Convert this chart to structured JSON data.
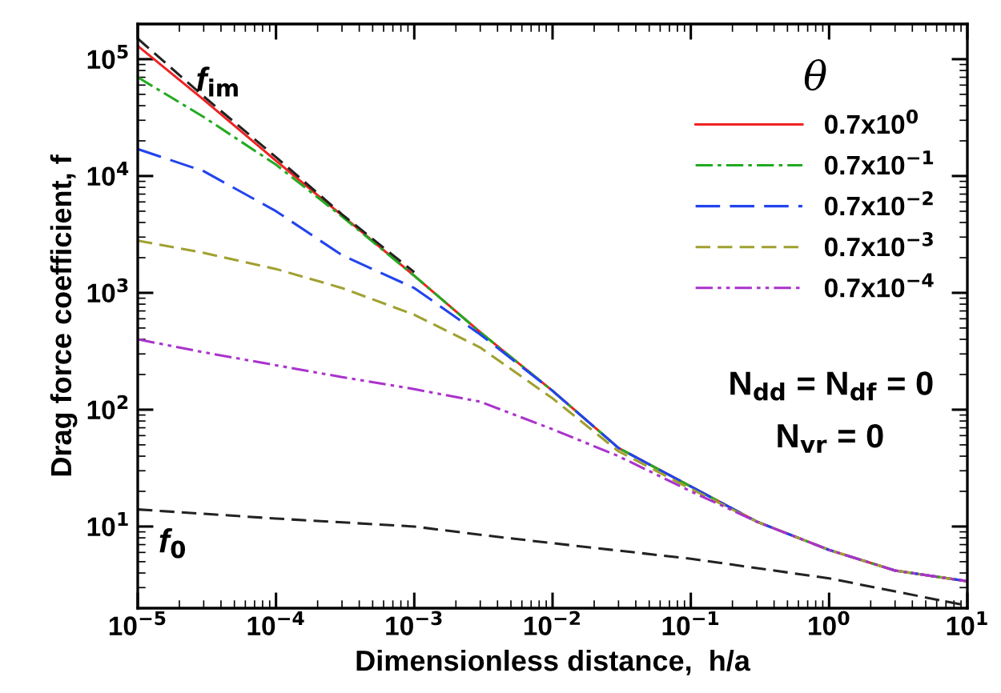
{
  "chart_data": {
    "type": "line",
    "xlabel": "Dimensionless distance,  h/a",
    "ylabel": "Drag force coefficient, f",
    "legend_title": "θ",
    "log": "xy",
    "xlim": [
      1e-05,
      10
    ],
    "ylim": [
      2,
      200000
    ],
    "xticks": [
      {
        "value": 1e-05,
        "label": "10$^{−5}$"
      },
      {
        "value": 0.0001,
        "label": "10$^{−4}$"
      },
      {
        "value": 0.001,
        "label": "10$^{−3}$"
      },
      {
        "value": 0.01,
        "label": "10$^{−2}$"
      },
      {
        "value": 0.1,
        "label": "10$^{−1}$"
      },
      {
        "value": 1,
        "label": "10$^{0}$"
      },
      {
        "value": 10,
        "label": "10$^{1}$"
      }
    ],
    "yticks": [
      {
        "value": 10,
        "label": "10$^{1}$"
      },
      {
        "value": 100,
        "label": "10$^{2}$"
      },
      {
        "value": 1000,
        "label": "10$^{3}$"
      },
      {
        "value": 10000,
        "label": "10$^{4}$"
      },
      {
        "value": 100000,
        "label": "10$^{5}$"
      }
    ],
    "grid": false,
    "legend": "top right",
    "series": [
      {
        "name": "0.7x10$^{0}$",
        "color": "#ee2222",
        "line_style": "solid",
        "x": [
          1e-05,
          3e-05,
          0.0001,
          0.0003,
          0.001,
          0.003,
          0.01,
          0.03,
          0.1,
          0.3,
          1,
          3,
          10
        ],
        "values": [
          130000,
          45000,
          13500,
          4600,
          1400,
          460,
          145,
          47,
          22,
          11,
          6.3,
          4.2,
          3.4
        ]
      },
      {
        "name": "0.7x10$^{−1}$",
        "color": "#22aa22",
        "line_style": "dashdot",
        "x": [
          1e-05,
          3e-05,
          0.0001,
          0.0003,
          0.001,
          0.003,
          0.01,
          0.03,
          0.1,
          0.3,
          1,
          3,
          10
        ],
        "values": [
          70000,
          32000,
          12500,
          4500,
          1400,
          460,
          145,
          47,
          22,
          11,
          6.3,
          4.2,
          3.4
        ]
      },
      {
        "name": "0.7x10$^{−2}$",
        "color": "#2244ee",
        "line_style": "longdash",
        "x": [
          1e-05,
          3e-05,
          0.0001,
          0.0003,
          0.001,
          0.003,
          0.01,
          0.03,
          0.1,
          0.3,
          1,
          3,
          10
        ],
        "values": [
          17000,
          11000,
          5000,
          2100,
          1100,
          440,
          145,
          47,
          22,
          11,
          6.3,
          4.2,
          3.4
        ]
      },
      {
        "name": "0.7x10$^{−3}$",
        "color": "#a0a030",
        "line_style": "dashed",
        "x": [
          1e-05,
          3e-05,
          0.0001,
          0.0003,
          0.001,
          0.003,
          0.01,
          0.03,
          0.1,
          0.3,
          1,
          3,
          10
        ],
        "values": [
          2800,
          2200,
          1600,
          1100,
          650,
          340,
          125,
          44,
          21,
          11,
          6.3,
          4.2,
          3.4
        ]
      },
      {
        "name": "0.7x10$^{−4}$",
        "color": "#aa33cc",
        "line_style": "dashdotdot",
        "x": [
          1e-05,
          3e-05,
          0.0001,
          0.0003,
          0.001,
          0.003,
          0.01,
          0.03,
          0.1,
          0.3,
          1,
          3,
          10
        ],
        "values": [
          400,
          310,
          240,
          190,
          150,
          117,
          68,
          40,
          20,
          11,
          6.3,
          4.2,
          3.4
        ]
      },
      {
        "color": "#222222",
        "line_style": "dashed",
        "x": [
          1e-05,
          3e-05,
          0.0001,
          0.0003,
          0.001
        ],
        "values": [
          150000,
          48000,
          14500,
          4700,
          1500
        ]
      },
      {
        "color": "#222222",
        "line_style": "dashed",
        "x": [
          1e-05,
          0.0001,
          0.001,
          0.003,
          0.01,
          0.1,
          1,
          10
        ],
        "values": [
          14,
          11.7,
          10,
          8.5,
          7.2,
          5.3,
          3.6,
          2.1
        ]
      }
    ],
    "annotations": [
      "f$_{im}$",
      "f$_{0}$",
      "N$_{dd}$ = N$_{df}$ = 0",
      "N$_{vr}$ = 0"
    ]
  }
}
